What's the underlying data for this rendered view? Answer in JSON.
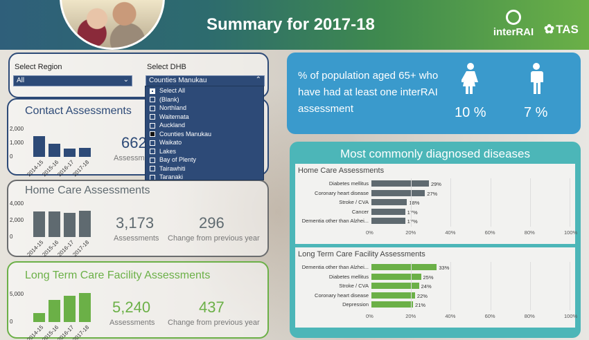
{
  "header": {
    "title": "Summary for  2017-18",
    "logo_interrai": "interRAI",
    "logo_tas": "TAS"
  },
  "filters": {
    "region_label": "Select Region",
    "region_value": "All",
    "dhb_label": "Select DHB",
    "dhb_value": "Counties Manukau",
    "dhb_options": [
      {
        "label": "Select All",
        "state": "partial"
      },
      {
        "label": "(Blank)",
        "state": "empty"
      },
      {
        "label": "Northland",
        "state": "empty"
      },
      {
        "label": "Waitemata",
        "state": "empty"
      },
      {
        "label": "Auckland",
        "state": "empty"
      },
      {
        "label": "Counties Manukau",
        "state": "selected"
      },
      {
        "label": "Waikato",
        "state": "empty"
      },
      {
        "label": "Lakes",
        "state": "empty"
      },
      {
        "label": "Bay of Plenty",
        "state": "empty"
      },
      {
        "label": "Tairawhiti",
        "state": "empty"
      },
      {
        "label": "Taranaki",
        "state": "empty"
      }
    ]
  },
  "contact": {
    "title": "Contact Assessments",
    "value": "662",
    "value_label": "Assessments",
    "color": "#2d4a77"
  },
  "home": {
    "title": "Home Care Assessments",
    "value": "3,173",
    "value_label": "Assessments",
    "change": "296",
    "change_label": "Change from previous year",
    "color": "#5f6a70"
  },
  "ltc": {
    "title": "Long Term Care Facility Assessments",
    "value": "5,240",
    "value_label": "Assessments",
    "change": "437",
    "change_label": "Change from previous year",
    "color": "#6bb047"
  },
  "population": {
    "text": "% of population aged 65+ who have had at least one interRAI assessment",
    "female_value": "10 %",
    "male_value": "7 %"
  },
  "diseases": {
    "title": "Most commonly diagnosed diseases",
    "home_title": "Home Care Assessments",
    "ltc_title": "Long Term Care Facility Assessments",
    "axis_ticks": [
      "0%",
      "20%",
      "40%",
      "60%",
      "80%",
      "100%"
    ]
  },
  "chart_data": [
    {
      "type": "bar",
      "name": "contact",
      "categories": [
        "2014-15",
        "2015-16",
        "2016-17",
        "2017-18"
      ],
      "values": [
        1500,
        950,
        580,
        662
      ],
      "ytick_labels": [
        "0",
        "1,000",
        "2,000"
      ],
      "ylim": [
        0,
        2000
      ]
    },
    {
      "type": "bar",
      "name": "home",
      "categories": [
        "2014-15",
        "2015-16",
        "2016-17",
        "2017-18"
      ],
      "values": [
        3050,
        3100,
        2877,
        3173
      ],
      "ytick_labels": [
        "0",
        "2,000",
        "4,000"
      ],
      "ylim": [
        0,
        4000
      ]
    },
    {
      "type": "bar",
      "name": "ltc",
      "categories": [
        "2014-15",
        "2015-16",
        "2016-17",
        "2017-18"
      ],
      "values": [
        1600,
        3950,
        4803,
        5240
      ],
      "ytick_labels": [
        "0",
        "5,000"
      ],
      "ylim": [
        0,
        5000
      ]
    },
    {
      "type": "bar",
      "name": "home-diseases",
      "orientation": "horizontal",
      "categories": [
        "Diabetes mellitus",
        "Coronary heart disease",
        "Stroke / CVA",
        "Cancer",
        "Dementia other than Alzhei..."
      ],
      "values": [
        29,
        27,
        18,
        17,
        17
      ],
      "value_labels": [
        "29%",
        "27%",
        "18%",
        "17%",
        "17%"
      ],
      "xlim": [
        0,
        100
      ]
    },
    {
      "type": "bar",
      "name": "ltc-diseases",
      "orientation": "horizontal",
      "categories": [
        "Dementia other than Alzhei...",
        "Diabetes mellitus",
        "Stroke / CVA",
        "Coronary heart disease",
        "Depression"
      ],
      "values": [
        33,
        25,
        24,
        22,
        21
      ],
      "value_labels": [
        "33%",
        "25%",
        "24%",
        "22%",
        "21%"
      ],
      "xlim": [
        0,
        100
      ]
    }
  ]
}
